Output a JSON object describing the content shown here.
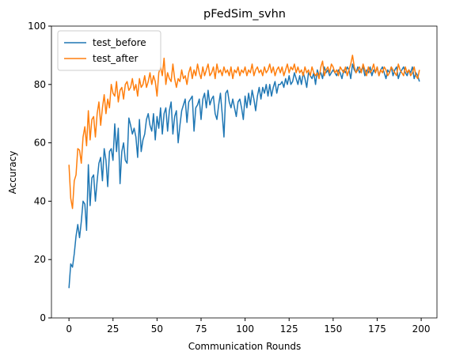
{
  "chart_data": {
    "type": "line",
    "title": "pFedSim_svhn",
    "xlabel": "Communication Rounds",
    "ylabel": "Accuracy",
    "x": [
      0,
      1,
      2,
      3,
      4,
      5,
      6,
      7,
      8,
      9,
      10,
      11,
      12,
      13,
      14,
      15,
      16,
      17,
      18,
      19,
      20,
      21,
      22,
      23,
      24,
      25,
      26,
      27,
      28,
      29,
      30,
      31,
      32,
      33,
      34,
      35,
      36,
      37,
      38,
      39,
      40,
      41,
      42,
      43,
      44,
      45,
      46,
      47,
      48,
      49,
      50,
      51,
      52,
      53,
      54,
      55,
      56,
      57,
      58,
      59,
      60,
      61,
      62,
      63,
      64,
      65,
      66,
      67,
      68,
      69,
      70,
      71,
      72,
      73,
      74,
      75,
      76,
      77,
      78,
      79,
      80,
      81,
      82,
      83,
      84,
      85,
      86,
      87,
      88,
      89,
      90,
      91,
      92,
      93,
      94,
      95,
      96,
      97,
      98,
      99,
      100,
      101,
      102,
      103,
      104,
      105,
      106,
      107,
      108,
      109,
      110,
      111,
      112,
      113,
      114,
      115,
      116,
      117,
      118,
      119,
      120,
      121,
      122,
      123,
      124,
      125,
      126,
      127,
      128,
      129,
      130,
      131,
      132,
      133,
      134,
      135,
      136,
      137,
      138,
      139,
      140,
      141,
      142,
      143,
      144,
      145,
      146,
      147,
      148,
      149,
      150,
      151,
      152,
      153,
      154,
      155,
      156,
      157,
      158,
      159,
      160,
      161,
      162,
      163,
      164,
      165,
      166,
      167,
      168,
      169,
      170,
      171,
      172,
      173,
      174,
      175,
      176,
      177,
      178,
      179,
      180,
      181,
      182,
      183,
      184,
      185,
      186,
      187,
      188,
      189,
      190,
      191,
      192,
      193,
      194,
      195,
      196,
      197,
      198,
      199
    ],
    "series": [
      {
        "name": "test_before",
        "color": "#1f77b4",
        "values": [
          10.2,
          18.5,
          17.4,
          22,
          28,
          32,
          27.5,
          33,
          40,
          39,
          30,
          52.5,
          38.5,
          48,
          49,
          40,
          47,
          53,
          55,
          47,
          58,
          54,
          45,
          57,
          58,
          54,
          66.5,
          57,
          65,
          46,
          57,
          60,
          54,
          53,
          68.5,
          66,
          63,
          65,
          62,
          55,
          68,
          57,
          61,
          63,
          68,
          70,
          66,
          64,
          70,
          61,
          69,
          65,
          72,
          63,
          70,
          72,
          64,
          71,
          74,
          63,
          69,
          71,
          60,
          66,
          71,
          73,
          75,
          67,
          74,
          75,
          76,
          64,
          72,
          73,
          75,
          68,
          75,
          77,
          72,
          78,
          73,
          75,
          76,
          70,
          68,
          73,
          77,
          70,
          62,
          77,
          78,
          74,
          72,
          75,
          72,
          69,
          74,
          75,
          72,
          68,
          76,
          72,
          77,
          73,
          78,
          75,
          71,
          76,
          79,
          75,
          79,
          77,
          80,
          76,
          80,
          76,
          79,
          81,
          77,
          80,
          80,
          81,
          79,
          82,
          80,
          83,
          80,
          81,
          84,
          82,
          80,
          83,
          80,
          84,
          82,
          79,
          84,
          83,
          82,
          84,
          80,
          85,
          83,
          84,
          82,
          86,
          84,
          85,
          83,
          84,
          85,
          84,
          83,
          85,
          84,
          82,
          85,
          84,
          86,
          85,
          82,
          87,
          85,
          84,
          86,
          84,
          85,
          86,
          83,
          85,
          84,
          86,
          83,
          85,
          84,
          86,
          83,
          85,
          86,
          84,
          82,
          85,
          84,
          86,
          83,
          85,
          86,
          82,
          84,
          85,
          86,
          84,
          83,
          85,
          84,
          86,
          82,
          84,
          83,
          81
        ]
      },
      {
        "name": "test_after",
        "color": "#ff7f0e",
        "values": [
          52.5,
          41,
          37.5,
          47,
          49,
          58,
          57.5,
          53,
          62,
          65.5,
          59,
          71,
          61,
          68,
          69,
          62,
          70,
          74,
          66,
          72,
          76.5,
          70,
          75,
          72,
          80,
          77,
          76,
          81,
          74,
          78,
          79,
          75,
          80,
          81,
          78,
          79,
          82,
          78,
          80,
          76,
          82,
          79,
          80,
          83,
          79,
          81,
          84,
          80,
          83,
          81,
          76,
          84,
          86,
          83,
          89,
          80,
          84,
          82,
          81,
          87,
          82,
          79,
          82,
          81,
          85,
          82,
          83,
          80,
          84,
          86,
          82,
          85,
          83,
          87,
          84,
          82,
          86,
          83,
          85,
          87,
          83,
          84,
          86,
          82,
          87,
          84,
          85,
          83,
          86,
          84,
          85,
          83,
          86,
          82,
          85,
          84,
          86,
          83,
          85,
          84,
          86,
          83,
          85,
          84,
          87,
          83,
          85,
          86,
          84,
          85,
          83,
          86,
          84,
          85,
          87,
          84,
          86,
          83,
          85,
          86,
          84,
          86,
          83,
          85,
          87,
          84,
          86,
          85,
          87,
          84,
          86,
          84,
          85,
          83,
          86,
          84,
          85,
          83,
          86,
          84,
          83,
          84,
          82,
          86,
          88,
          83,
          85,
          86,
          84,
          87,
          86,
          84,
          85,
          83,
          86,
          85,
          84,
          86,
          83,
          85,
          87,
          90,
          86,
          84,
          85,
          86,
          84,
          87,
          85,
          83,
          86,
          84,
          85,
          87,
          84,
          86,
          83,
          85,
          84,
          86,
          85,
          83,
          84,
          86,
          85,
          84,
          83,
          87,
          85,
          84,
          83,
          86,
          84,
          85,
          83,
          84,
          86,
          83,
          82,
          85
        ]
      }
    ],
    "xlim": [
      -9.95,
      208.95
    ],
    "xticks": [
      0,
      25,
      50,
      75,
      100,
      125,
      150,
      175,
      200
    ],
    "ylim": [
      0,
      100
    ],
    "yticks": [
      0,
      20,
      40,
      60,
      80,
      100
    ],
    "legend": "upper left"
  }
}
